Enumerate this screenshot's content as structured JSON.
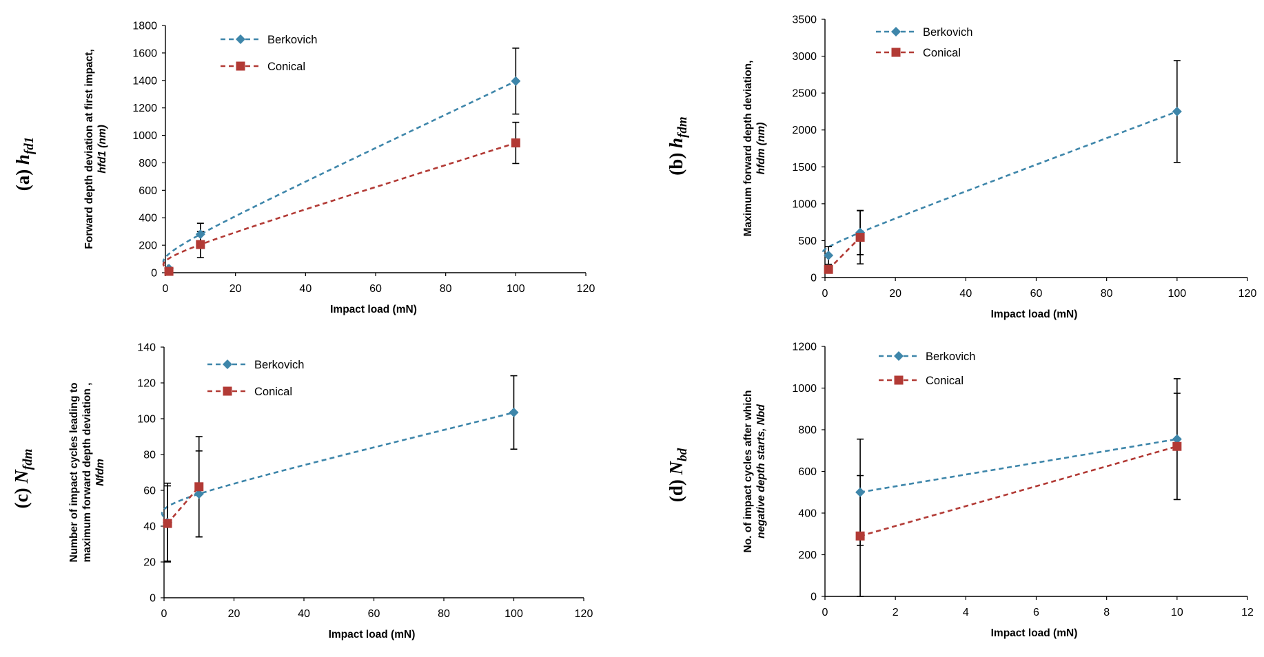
{
  "colors": {
    "berkovich": "#3E86AA",
    "conical": "#B23A35"
  },
  "chart_data": [
    {
      "id": "a",
      "type": "line",
      "panel_label": {
        "prefix": "(a) ",
        "symbol": "h",
        "subscript": "fd1"
      },
      "xlabel": "Impact load (mN)",
      "ylabel_line1": "Forward depth deviation at first impact,",
      "ylabel_line2": "hfd1 (nm)",
      "xlim": [
        0,
        120
      ],
      "ylim": [
        0,
        1800
      ],
      "xticks": [
        "0",
        "20",
        "40",
        "60",
        "80",
        "100",
        "120"
      ],
      "yticks": [
        "0",
        "200",
        "400",
        "600",
        "800",
        "1000",
        "1200",
        "1400",
        "1600",
        "1800"
      ],
      "legend": [
        "Berkovich",
        "Conical"
      ],
      "series": [
        {
          "name": "Berkovich",
          "marker": "diamond",
          "x": [
            1,
            10,
            100
          ],
          "y": [
            30,
            280,
            1395
          ],
          "err": [
            0,
            80,
            240
          ]
        },
        {
          "name": "Conical",
          "marker": "square",
          "x": [
            1,
            10,
            100
          ],
          "y": [
            10,
            205,
            945
          ],
          "err": [
            0,
            95,
            150
          ]
        }
      ]
    },
    {
      "id": "b",
      "type": "line",
      "panel_label": {
        "prefix": "(b) ",
        "symbol": "h",
        "subscript": "fdm"
      },
      "xlabel": "Impact load (mN)",
      "ylabel_line1": "Maximum forward depth deviation,",
      "ylabel_line2": "hfdm (nm)",
      "xlim": [
        0,
        120
      ],
      "ylim": [
        0,
        3500
      ],
      "xticks": [
        "0",
        "20",
        "40",
        "60",
        "80",
        "100",
        "120"
      ],
      "yticks": [
        "0",
        "500",
        "1000",
        "1500",
        "2000",
        "2500",
        "3000",
        "3500"
      ],
      "legend": [
        "Berkovich",
        "Conical"
      ],
      "series": [
        {
          "name": "Berkovich",
          "marker": "diamond",
          "x": [
            1,
            10,
            100
          ],
          "y": [
            300,
            610,
            2250
          ],
          "err": [
            120,
            300,
            690
          ]
        },
        {
          "name": "Conical",
          "marker": "square",
          "x": [
            1,
            10,
            100
          ],
          "y": [
            110,
            545,
            null
          ],
          "err": [
            0,
            360,
            0
          ]
        }
      ]
    },
    {
      "id": "c",
      "type": "line",
      "panel_label": {
        "prefix": "(c) ",
        "symbol": "N",
        "subscript": "fdm"
      },
      "xlabel": "Impact load (mN)",
      "ylabel_line1": "Number of impact cycles leading to",
      "ylabel_line2": "maximum forward depth deviation ,",
      "ylabel_line3": "Nfdm",
      "xlim": [
        0,
        120
      ],
      "ylim": [
        0,
        140
      ],
      "xticks": [
        "0",
        "20",
        "40",
        "60",
        "80",
        "100",
        "120"
      ],
      "yticks": [
        "0",
        "20",
        "40",
        "60",
        "80",
        "100",
        "120",
        "140"
      ],
      "legend": [
        "Berkovich",
        "Conical"
      ],
      "series": [
        {
          "name": "Berkovich",
          "marker": "diamond",
          "x": [
            1,
            10,
            100
          ],
          "y": [
            42,
            58,
            103.5
          ],
          "err": [
            22,
            24,
            20.5
          ]
        },
        {
          "name": "Conical",
          "marker": "square",
          "x": [
            1,
            10,
            100
          ],
          "y": [
            41.5,
            62,
            null
          ],
          "err": [
            21,
            28,
            0
          ]
        }
      ]
    },
    {
      "id": "d",
      "type": "line",
      "panel_label": {
        "prefix": "(d) ",
        "symbol": "N",
        "subscript": "bd"
      },
      "xlabel": "Impact load (mN)",
      "ylabel_line1": "No. of impact cycles after which",
      "ylabel_line2": "negative depth starts, Nbd",
      "xlim": [
        0,
        12
      ],
      "ylim": [
        0,
        1200
      ],
      "xticks": [
        "0",
        "2",
        "4",
        "6",
        "8",
        "10",
        "12"
      ],
      "yticks": [
        "0",
        "200",
        "400",
        "600",
        "800",
        "1000",
        "1200"
      ],
      "legend": [
        "Berkovich",
        "Conical"
      ],
      "series": [
        {
          "name": "Berkovich",
          "marker": "diamond",
          "x": [
            1,
            10
          ],
          "y": [
            500,
            755
          ],
          "err": [
            255,
            290
          ]
        },
        {
          "name": "Conical",
          "marker": "square",
          "x": [
            1,
            10
          ],
          "y": [
            290,
            720
          ],
          "err": [
            290,
            255
          ]
        }
      ]
    }
  ]
}
